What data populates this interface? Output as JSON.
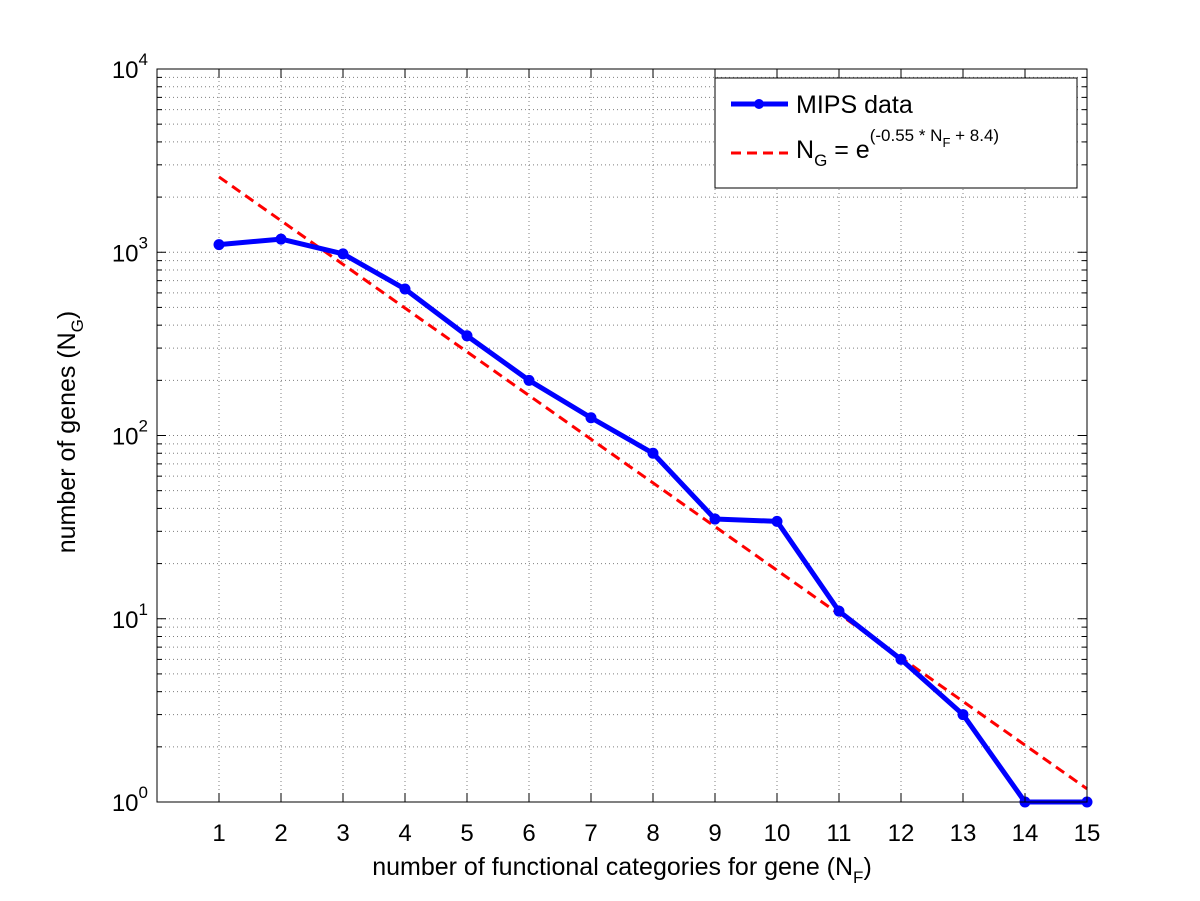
{
  "colors": {
    "data_series": "#0000ff",
    "fit_series": "#ff0000",
    "grid": "#7f7f7f",
    "axis": "#000000"
  },
  "chart_data": {
    "type": "line",
    "yscale": "log",
    "grid": true,
    "legend_placement": "top-right",
    "title": "",
    "xlabel": {
      "text": "number of functional categories for gene (N",
      "sub": "F",
      "close": ")"
    },
    "ylabel": {
      "text": "number of genes (N",
      "sub": "G",
      "close": ")"
    },
    "xlim": [
      0,
      15
    ],
    "ylim": [
      1,
      10000
    ],
    "x_ticks": [
      "1",
      "2",
      "3",
      "4",
      "5",
      "6",
      "7",
      "8",
      "9",
      "10",
      "11",
      "12",
      "13",
      "14",
      "15"
    ],
    "y_ticks": [
      {
        "base": "10",
        "exp": "0"
      },
      {
        "base": "10",
        "exp": "1"
      },
      {
        "base": "10",
        "exp": "2"
      },
      {
        "base": "10",
        "exp": "3"
      },
      {
        "base": "10",
        "exp": "4"
      }
    ],
    "series": [
      {
        "name": "MIPS data",
        "style": "solid-with-markers",
        "x": [
          1,
          2,
          3,
          4,
          5,
          6,
          7,
          8,
          9,
          10,
          11,
          12,
          13,
          14,
          15
        ],
        "y": [
          1100,
          1180,
          980,
          630,
          350,
          200,
          125,
          80,
          35,
          34,
          11,
          6,
          3,
          1,
          1
        ]
      },
      {
        "name_parts": {
          "lead": "N",
          "lead_sub": "G",
          "mid": " = e",
          "exp_a": "(-0.55 * N",
          "exp_sub": "F",
          "exp_b": " + 8.4)"
        },
        "style": "dashed",
        "x": [
          1,
          15
        ],
        "y": [
          2576,
          1.18
        ]
      }
    ]
  }
}
